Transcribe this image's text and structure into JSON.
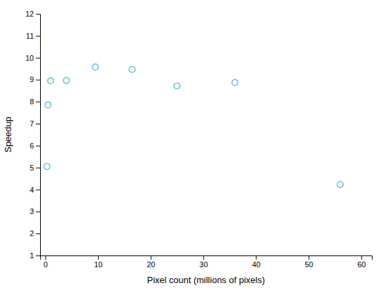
{
  "chart_data": {
    "type": "scatter",
    "x": [
      0.3,
      0.5,
      1.0,
      4.0,
      9.5,
      16.5,
      25.0,
      36.0,
      56.0
    ],
    "y": [
      5.05,
      7.85,
      8.95,
      8.97,
      9.58,
      9.47,
      8.72,
      8.87,
      4.23
    ],
    "color": "#4db3cc",
    "marker": "open-circle",
    "xlabel": "Pixel count (millions of pixels)",
    "ylabel": "Speedup",
    "xlim": [
      -1,
      62
    ],
    "ylim": [
      1,
      12
    ],
    "xticks": [
      0,
      10,
      20,
      30,
      40,
      50,
      60
    ],
    "yticks": [
      1,
      2,
      3,
      4,
      5,
      6,
      7,
      8,
      9,
      10,
      11,
      12
    ],
    "grid": false
  }
}
